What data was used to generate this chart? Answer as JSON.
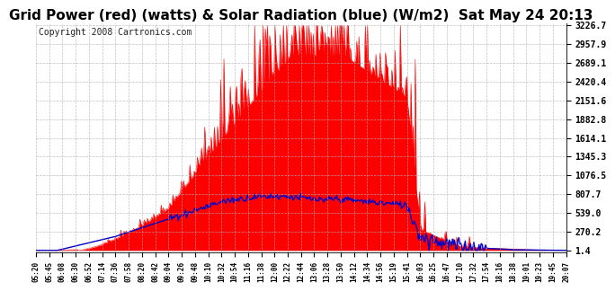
{
  "title": "Grid Power (red) (watts) & Solar Radiation (blue) (W/m2)  Sat May 24 20:13",
  "copyright": "Copyright 2008 Cartronics.com",
  "yticks": [
    1.4,
    270.2,
    539.0,
    807.7,
    1076.5,
    1345.3,
    1614.1,
    1882.8,
    2151.6,
    2420.4,
    2689.1,
    2957.9,
    3226.7
  ],
  "ymin": 0,
  "ymax": 3226.7,
  "background_color": "#ffffff",
  "plot_bg_color": "#ffffff",
  "grid_color": "#b0b0b0",
  "red_color": "#ff0000",
  "blue_color": "#0000cc",
  "fill_color": "#ff0000",
  "title_fontsize": 11,
  "copyright_fontsize": 7,
  "num_points": 500,
  "time_labels": [
    "05:20",
    "05:45",
    "06:08",
    "06:30",
    "06:52",
    "07:14",
    "07:36",
    "07:58",
    "08:20",
    "08:42",
    "09:04",
    "09:26",
    "09:48",
    "10:10",
    "10:32",
    "10:54",
    "11:16",
    "11:38",
    "12:00",
    "12:22",
    "12:44",
    "13:06",
    "13:28",
    "13:50",
    "14:12",
    "14:34",
    "14:56",
    "15:19",
    "15:41",
    "16:03",
    "16:25",
    "16:47",
    "17:10",
    "17:32",
    "17:54",
    "18:16",
    "18:38",
    "19:01",
    "19:23",
    "19:45",
    "20:07"
  ]
}
